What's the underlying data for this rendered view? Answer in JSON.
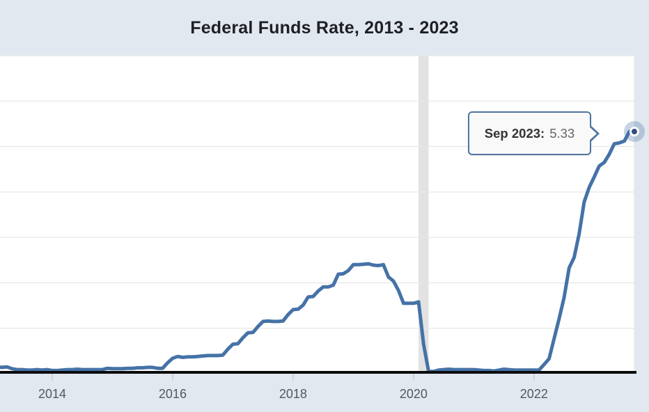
{
  "title": "Federal Funds Rate, 2013 - 2023",
  "tooltip": {
    "label": "Sep 2023:",
    "value": "5.33"
  },
  "colors": {
    "background": "#e2e8f0",
    "plot_background": "#ffffff",
    "line": "#4572a7",
    "marker_fill": "#2f4f7d",
    "marker_ring": "#ffffff",
    "halo": "rgba(69,114,167,0.3)",
    "gridline": "#e7e7e7",
    "recession_band": "#e2e2e2",
    "axis_line": "#0b0b0b",
    "tick": "#c6cbd2",
    "tick_label": "#55575b",
    "title_color": "#1d1f24",
    "tooltip_border": "#50759f",
    "tooltip_bg": "#f9f9f9",
    "tooltip_label_color": "#333333",
    "tooltip_value_color": "#666666"
  },
  "chart_data": {
    "type": "line",
    "title": "Federal Funds Rate, 2013 - 2023",
    "xlabel": "",
    "ylabel": "",
    "legend": "none",
    "grid": "horizontal",
    "y_axis_labels_visible": false,
    "x_domain": [
      2013.133,
      2023.667
    ],
    "ylim": [
      0,
      7
    ],
    "y_gridline_interval": 1,
    "x_ticks": [
      {
        "t": 2014,
        "label": "2014"
      },
      {
        "t": 2016,
        "label": "2016"
      },
      {
        "t": 2018,
        "label": "2018"
      },
      {
        "t": 2020,
        "label": "2020"
      },
      {
        "t": 2022,
        "label": "2022"
      }
    ],
    "recession_bands": [
      {
        "start": 2020.083,
        "end": 2020.25
      }
    ],
    "highlight_point": {
      "label": "Sep 2023",
      "t": 2023.6667,
      "value": 5.33
    },
    "series": [
      {
        "name": "Federal Funds Rate",
        "frequency": "monthly",
        "start_year": 2013,
        "start_month": 1,
        "values": [
          0.14,
          0.15,
          0.14,
          0.15,
          0.11,
          0.09,
          0.09,
          0.08,
          0.08,
          0.09,
          0.08,
          0.09,
          0.07,
          0.07,
          0.08,
          0.09,
          0.09,
          0.1,
          0.09,
          0.09,
          0.09,
          0.09,
          0.09,
          0.12,
          0.11,
          0.11,
          0.11,
          0.12,
          0.12,
          0.13,
          0.13,
          0.14,
          0.14,
          0.12,
          0.12,
          0.24,
          0.34,
          0.38,
          0.36,
          0.37,
          0.37,
          0.38,
          0.39,
          0.4,
          0.4,
          0.4,
          0.41,
          0.54,
          0.65,
          0.66,
          0.79,
          0.9,
          0.91,
          1.04,
          1.15,
          1.16,
          1.15,
          1.15,
          1.16,
          1.3,
          1.41,
          1.42,
          1.51,
          1.69,
          1.7,
          1.82,
          1.91,
          1.91,
          1.95,
          2.19,
          2.2,
          2.27,
          2.4,
          2.4,
          2.41,
          2.42,
          2.39,
          2.38,
          2.4,
          2.13,
          2.04,
          1.83,
          1.55,
          1.55,
          1.55,
          1.58,
          0.65,
          0.05,
          0.05,
          0.08,
          0.09,
          0.1,
          0.09,
          0.09,
          0.09,
          0.09,
          0.09,
          0.08,
          0.07,
          0.07,
          0.06,
          0.08,
          0.1,
          0.09,
          0.08,
          0.08,
          0.08,
          0.08,
          0.08,
          0.08,
          0.2,
          0.33,
          0.77,
          1.21,
          1.68,
          2.33,
          2.56,
          3.08,
          3.78,
          4.1,
          4.33,
          4.57,
          4.65,
          4.83,
          5.06,
          5.08,
          5.12,
          5.33,
          5.33
        ]
      }
    ]
  }
}
